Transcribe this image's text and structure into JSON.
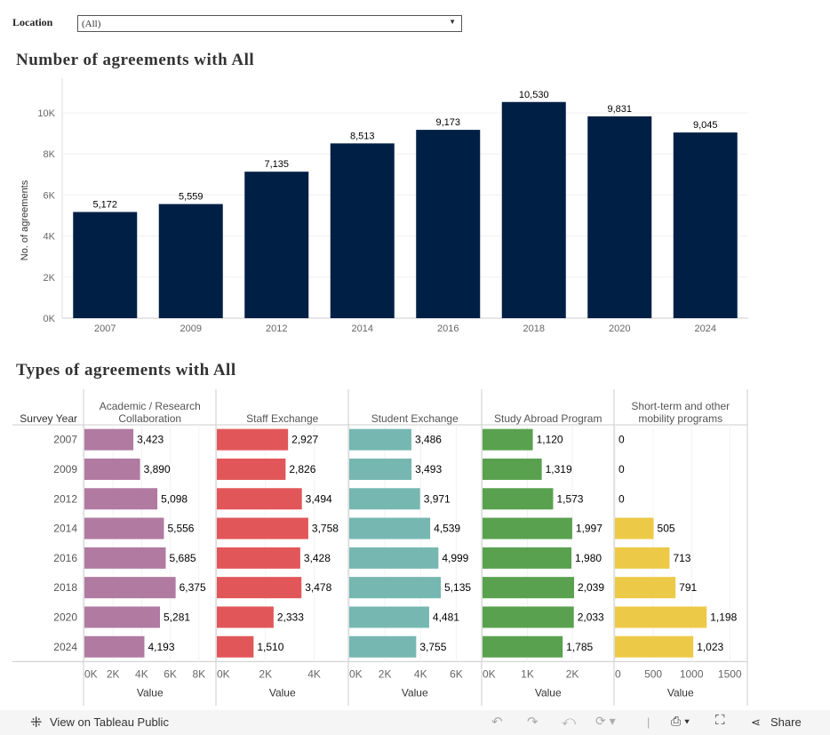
{
  "filter": {
    "label": "Location",
    "value": "(All)"
  },
  "chart1_title": "Number of agreements with All",
  "chart2_title": "Types of agreements with All",
  "chart_data": [
    {
      "type": "bar",
      "title": "Number of agreements with All",
      "ylabel": "No. of agreements",
      "xlabel": "",
      "ylim": [
        0,
        11000
      ],
      "yticks": [
        "0K",
        "2K",
        "4K",
        "6K",
        "8K",
        "10K"
      ],
      "categories": [
        "2007",
        "2009",
        "2012",
        "2014",
        "2016",
        "2018",
        "2020",
        "2024"
      ],
      "values": [
        5172,
        5559,
        7135,
        8513,
        9173,
        10530,
        9831,
        9045
      ],
      "labels": [
        "5,172",
        "5,559",
        "7,135",
        "8,513",
        "9,173",
        "10,530",
        "9,831",
        "9,045"
      ],
      "color": "#001f45",
      "grid": true
    },
    {
      "type": "bar",
      "orientation": "horizontal",
      "title": "Types of agreements with All",
      "row_header": "Survey Year",
      "xlabel": "Value",
      "categories": [
        "2007",
        "2009",
        "2012",
        "2014",
        "2016",
        "2018",
        "2020",
        "2024"
      ],
      "series": [
        {
          "name": "Academic / Research Collaboration",
          "color": "#b07aa1",
          "xmax": 8000,
          "ticks": [
            "0K",
            "2K",
            "4K",
            "6K",
            "8K"
          ],
          "values": [
            3423,
            3890,
            5098,
            5556,
            5685,
            6375,
            5281,
            4193
          ],
          "labels": [
            "3,423",
            "3,890",
            "5,098",
            "5,556",
            "5,685",
            "6,375",
            "5,281",
            "4,193"
          ]
        },
        {
          "name": "Staff Exchange",
          "color": "#e15759",
          "xmax": 4000,
          "ticks": [
            "0K",
            "2K",
            "4K"
          ],
          "values": [
            2927,
            2826,
            3494,
            3758,
            3428,
            3478,
            2333,
            1510
          ],
          "labels": [
            "2,927",
            "2,826",
            "3,494",
            "3,758",
            "3,428",
            "3,478",
            "2,333",
            "1,510"
          ]
        },
        {
          "name": "Student Exchange",
          "color": "#76b7b2",
          "xmax": 6000,
          "ticks": [
            "0K",
            "2K",
            "4K",
            "6K"
          ],
          "values": [
            3486,
            3493,
            3971,
            4539,
            4999,
            5135,
            4481,
            3755
          ],
          "labels": [
            "3,486",
            "3,493",
            "3,971",
            "4,539",
            "4,999",
            "5,135",
            "4,481",
            "3,755"
          ]
        },
        {
          "name": "Study Abroad Program",
          "color": "#59a14f",
          "xmax": 2000,
          "ticks": [
            "0K",
            "1K",
            "2K"
          ],
          "values": [
            1120,
            1319,
            1573,
            1997,
            1980,
            2039,
            2033,
            1785
          ],
          "labels": [
            "1,120",
            "1,319",
            "1,573",
            "1,997",
            "1,980",
            "2,039",
            "2,033",
            "1,785"
          ]
        },
        {
          "name": "Short-term and other mobility programs",
          "color": "#edc948",
          "xmax": 1500,
          "ticks": [
            "0",
            "500",
            "1000",
            "1500"
          ],
          "values": [
            0,
            0,
            0,
            505,
            713,
            791,
            1198,
            1023
          ],
          "labels": [
            "0",
            "0",
            "0",
            "505",
            "713",
            "791",
            "1,198",
            "1,023"
          ]
        }
      ]
    }
  ],
  "toolbar": {
    "view_label": "View on Tableau Public",
    "share_label": "Share"
  }
}
